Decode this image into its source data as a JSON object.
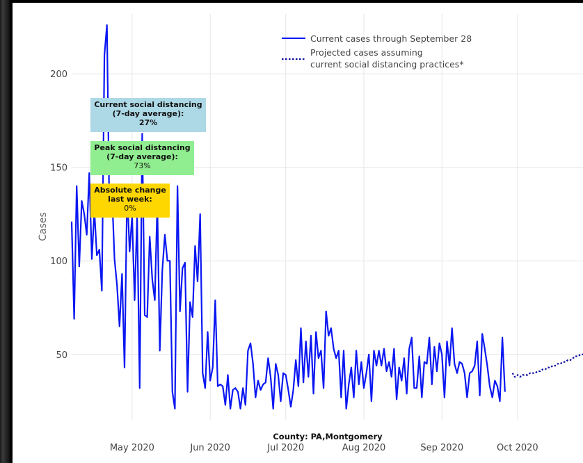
{
  "chart_data": {
    "type": "line",
    "title": "",
    "ylabel": "Cases",
    "xlabel": "County: PA,Montgomery",
    "ylim": [
      15,
      232
    ],
    "xlim": [
      "2020-04-07",
      "2020-10-27"
    ],
    "grid": true,
    "legend_placement": "top-right",
    "y_ticks": [
      50,
      100,
      150,
      200
    ],
    "x_ticks": [
      {
        "date": "2020-05-01",
        "label": "May 2020"
      },
      {
        "date": "2020-06-01",
        "label": "Jun 2020"
      },
      {
        "date": "2020-07-01",
        "label": "Jul 2020"
      },
      {
        "date": "2020-08-01",
        "label": "Aug 2020"
      },
      {
        "date": "2020-09-01",
        "label": "Sep 2020"
      },
      {
        "date": "2020-10-01",
        "label": "Oct 2020"
      }
    ],
    "series": [
      {
        "name": "Current cases through September 28",
        "style": "solid",
        "color": "#0a17f2",
        "start_date": "2020-04-07",
        "values": [
          121,
          69,
          140,
          97,
          132,
          125,
          114,
          147,
          101,
          127,
          103,
          106,
          84,
          210,
          226,
          125,
          137,
          101,
          87,
          65,
          93,
          43,
          138,
          105,
          124,
          79,
          124,
          32,
          168,
          71,
          70,
          113,
          90,
          79,
          131,
          52,
          95,
          114,
          100,
          100,
          30,
          21,
          140,
          73,
          96,
          99,
          30,
          78,
          70,
          108,
          89,
          125,
          40,
          32,
          62,
          36,
          43,
          79,
          33,
          34,
          33,
          23,
          39,
          21,
          31,
          32,
          30,
          21,
          32,
          23,
          52,
          56,
          45,
          27,
          36,
          31,
          34,
          35,
          48,
          38,
          21,
          45,
          39,
          25,
          40,
          39,
          31,
          22,
          31,
          47,
          33,
          64,
          35,
          57,
          38,
          60,
          29,
          62,
          48,
          52,
          32,
          73,
          60,
          64,
          53,
          48,
          52,
          27,
          52,
          21,
          34,
          43,
          27,
          52,
          34,
          46,
          32,
          40,
          50,
          25,
          52,
          44,
          52,
          44,
          53,
          41,
          46,
          38,
          53,
          26,
          43,
          36,
          48,
          29,
          53,
          59,
          32,
          32,
          49,
          27,
          46,
          45,
          59,
          34,
          54,
          41,
          56,
          50,
          27,
          57,
          44,
          64,
          45,
          40,
          46,
          45,
          40,
          27,
          40,
          41,
          44,
          57,
          28,
          61,
          53,
          44,
          33,
          27,
          36,
          33,
          25,
          59,
          30
        ]
      },
      {
        "name": "Projected cases assuming current social distancing practices*",
        "style": "dotted",
        "color": "#0a0aa0",
        "start_date": "2020-09-29",
        "values": [
          40,
          38,
          39,
          38,
          39,
          39,
          39,
          40,
          40,
          40,
          41,
          41,
          42,
          42,
          43,
          43,
          44,
          44,
          45,
          45,
          46,
          46,
          47,
          47,
          48,
          49,
          49,
          50,
          50,
          51
        ]
      }
    ],
    "annotations": [
      {
        "title": "Current social distancing (7-day average):",
        "value": "27%",
        "color": "#add8e6"
      },
      {
        "title": "Peak social distancing (7-day average):",
        "value": "73%",
        "color": "#90ee90"
      },
      {
        "title": "Absolute change last week:",
        "value": "0%",
        "color": "#ffd700"
      }
    ]
  },
  "colors": {
    "grid": "#e6e6e6",
    "tick_text": "#444444",
    "axis_title": "#666666",
    "current_line": "#0a17f2",
    "projected_line": "#0a0aa0"
  }
}
